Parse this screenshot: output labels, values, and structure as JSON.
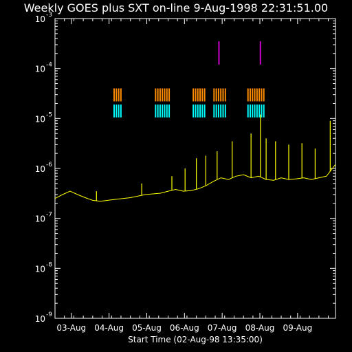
{
  "chart_data": {
    "type": "line",
    "title": "Weekly GOES plus SXT on-line  9-Aug-1998 22:31:51.00",
    "xlabel": "Start Time (02-Aug-98 13:35:00)",
    "ylabel": "",
    "y_scale": "log",
    "ylim": [
      1e-09,
      0.001
    ],
    "y_ticks": [
      {
        "base": "10",
        "exp": "-3"
      },
      {
        "base": "10",
        "exp": "-4"
      },
      {
        "base": "10",
        "exp": "-5"
      },
      {
        "base": "10",
        "exp": "-6"
      },
      {
        "base": "10",
        "exp": "-7"
      },
      {
        "base": "10",
        "exp": "-8"
      },
      {
        "base": "10",
        "exp": "-9"
      }
    ],
    "x_tick_labels": [
      "03-Aug",
      "04-Aug",
      "05-Aug",
      "06-Aug",
      "07-Aug",
      "08-Aug",
      "09-Aug"
    ],
    "x_range_days_from_start": [
      0,
      7.44
    ],
    "x_tick_days_from_start": [
      0.434,
      1.434,
      2.434,
      3.434,
      4.434,
      5.434,
      6.434
    ],
    "colors": {
      "background": "#000000",
      "axes": "#ffffff",
      "goes_flux": "#ffff00",
      "orange_bars": "#ff8c00",
      "cyan_bars": "#00ffff",
      "magenta_bars": "#cc00cc"
    },
    "series": [
      {
        "key": "goes_flux",
        "x_days": [
          0.0,
          0.2,
          0.4,
          0.6,
          0.8,
          1.0,
          1.2,
          1.4,
          1.6,
          1.8,
          2.0,
          2.2,
          2.4,
          2.6,
          2.8,
          3.0,
          3.2,
          3.4,
          3.6,
          3.8,
          4.0,
          4.2,
          4.4,
          4.6,
          4.8,
          5.0,
          5.2,
          5.4,
          5.6,
          5.8,
          6.0,
          6.2,
          6.4,
          6.6,
          6.8,
          7.0,
          7.2,
          7.44
        ],
        "y": [
          2.5e-07,
          3e-07,
          3.5e-07,
          3e-07,
          2.6e-07,
          2.3e-07,
          2.2e-07,
          2.3e-07,
          2.4e-07,
          2.5e-07,
          2.6e-07,
          2.8e-07,
          3e-07,
          3.1e-07,
          3.2e-07,
          3.5e-07,
          3.8e-07,
          3.5e-07,
          3.6e-07,
          3.9e-07,
          4.5e-07,
          5.5e-07,
          6.5e-07,
          6e-07,
          7e-07,
          7.5e-07,
          6.5e-07,
          7e-07,
          6e-07,
          5.8e-07,
          6.5e-07,
          6e-07,
          6.2e-07,
          6.5e-07,
          6e-07,
          6.5e-07,
          7e-07,
          1.2e-06
        ]
      },
      {
        "key": "goes_peaks",
        "x_days": [
          1.1,
          2.3,
          3.1,
          3.45,
          3.75,
          4.0,
          4.3,
          4.7,
          5.2,
          5.45,
          5.6,
          5.85,
          6.2,
          6.55,
          6.9,
          7.3
        ],
        "y": [
          3.5e-07,
          5e-07,
          7e-07,
          1e-06,
          1.6e-06,
          1.8e-06,
          2.2e-06,
          3.5e-06,
          5e-06,
          1.2e-05,
          4e-06,
          3.5e-06,
          3e-06,
          3.2e-06,
          2.5e-06,
          9e-06
        ]
      }
    ],
    "bar_rows": [
      {
        "key": "orange",
        "groups": [
          [
            1.55,
            1.75
          ],
          [
            2.65,
            3.05
          ],
          [
            3.65,
            3.95
          ],
          [
            4.2,
            4.55
          ],
          [
            5.1,
            5.55
          ]
        ]
      },
      {
        "key": "cyan",
        "groups": [
          [
            1.55,
            1.75
          ],
          [
            2.65,
            3.05
          ],
          [
            3.65,
            3.95
          ],
          [
            4.2,
            4.55
          ],
          [
            5.1,
            5.55
          ]
        ]
      },
      {
        "key": "magenta",
        "ticks": [
          4.33,
          5.43
        ]
      }
    ]
  }
}
